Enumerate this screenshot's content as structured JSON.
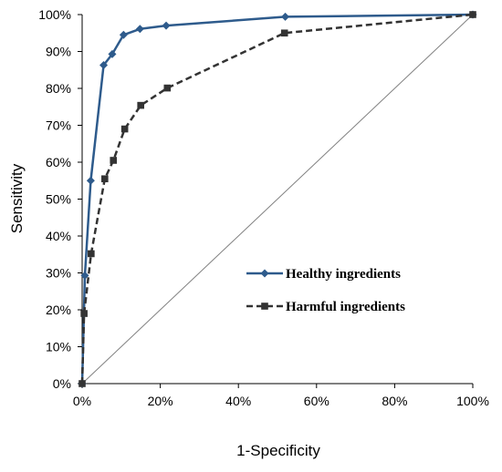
{
  "chart_data": {
    "type": "line",
    "title": "",
    "xlabel": "1-Specificity",
    "ylabel": "Sensitivity",
    "xlim": [
      0,
      100
    ],
    "ylim": [
      0,
      100
    ],
    "x_ticks": [
      "0%",
      "20%",
      "40%",
      "60%",
      "80%",
      "100%"
    ],
    "y_ticks": [
      "0%",
      "10%",
      "20%",
      "30%",
      "40%",
      "50%",
      "60%",
      "70%",
      "80%",
      "90%",
      "100%"
    ],
    "grid": false,
    "legend_position": "center-right",
    "reference_line": {
      "from": [
        0,
        0
      ],
      "to": [
        100,
        100
      ],
      "color": "#808080"
    },
    "series": [
      {
        "name": "Healthy ingredients",
        "color": "#2e5b8c",
        "line_style": "solid",
        "marker": "diamond",
        "points": [
          [
            0,
            0
          ],
          [
            0.7,
            29.3
          ],
          [
            2.2,
            55
          ],
          [
            5.5,
            86.3
          ],
          [
            7.7,
            89.3
          ],
          [
            10.6,
            94.5
          ],
          [
            14.8,
            96.1
          ],
          [
            21.5,
            97
          ],
          [
            52,
            99.4
          ],
          [
            100,
            100
          ]
        ]
      },
      {
        "name": "Harmful ingredients",
        "color": "#333333",
        "line_style": "dashed",
        "marker": "square",
        "points": [
          [
            0,
            0
          ],
          [
            0.5,
            19
          ],
          [
            2.3,
            35.2
          ],
          [
            5.8,
            55.5
          ],
          [
            8,
            60.5
          ],
          [
            10.9,
            69
          ],
          [
            15,
            75.4
          ],
          [
            21.8,
            80.1
          ],
          [
            51.8,
            95
          ],
          [
            100,
            100
          ]
        ]
      }
    ]
  }
}
